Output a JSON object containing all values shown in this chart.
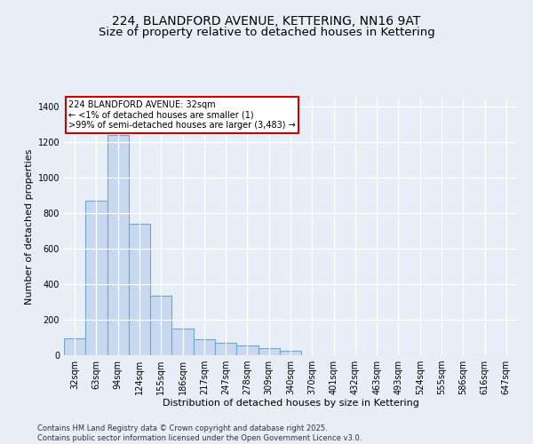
{
  "title": "224, BLANDFORD AVENUE, KETTERING, NN16 9AT",
  "subtitle": "Size of property relative to detached houses in Kettering",
  "xlabel": "Distribution of detached houses by size in Kettering",
  "ylabel": "Number of detached properties",
  "categories": [
    "32sqm",
    "63sqm",
    "94sqm",
    "124sqm",
    "155sqm",
    "186sqm",
    "217sqm",
    "247sqm",
    "278sqm",
    "309sqm",
    "340sqm",
    "370sqm",
    "401sqm",
    "432sqm",
    "463sqm",
    "493sqm",
    "524sqm",
    "555sqm",
    "586sqm",
    "616sqm",
    "647sqm"
  ],
  "values": [
    93,
    868,
    1240,
    742,
    335,
    150,
    88,
    68,
    55,
    40,
    25,
    0,
    0,
    0,
    0,
    0,
    0,
    0,
    0,
    0,
    0
  ],
  "bar_color": "#c8d9ef",
  "bar_edge_color": "#6ea6d0",
  "background_color": "#e8eef6",
  "plot_bg_color": "#e8eef6",
  "annotation_text": "224 BLANDFORD AVENUE: 32sqm\n← <1% of detached houses are smaller (1)\n>99% of semi-detached houses are larger (3,483) →",
  "annotation_box_color": "#ffffff",
  "annotation_box_edge": "#cc0000",
  "footer_line1": "Contains HM Land Registry data © Crown copyright and database right 2025.",
  "footer_line2": "Contains public sector information licensed under the Open Government Licence v3.0.",
  "ylim": [
    0,
    1450
  ],
  "yticks": [
    0,
    200,
    400,
    600,
    800,
    1000,
    1200,
    1400
  ],
  "grid_color": "#d0d8e8",
  "title_fontsize": 10,
  "axis_label_fontsize": 8,
  "tick_fontsize": 7,
  "annotation_fontsize": 7,
  "footer_fontsize": 6
}
